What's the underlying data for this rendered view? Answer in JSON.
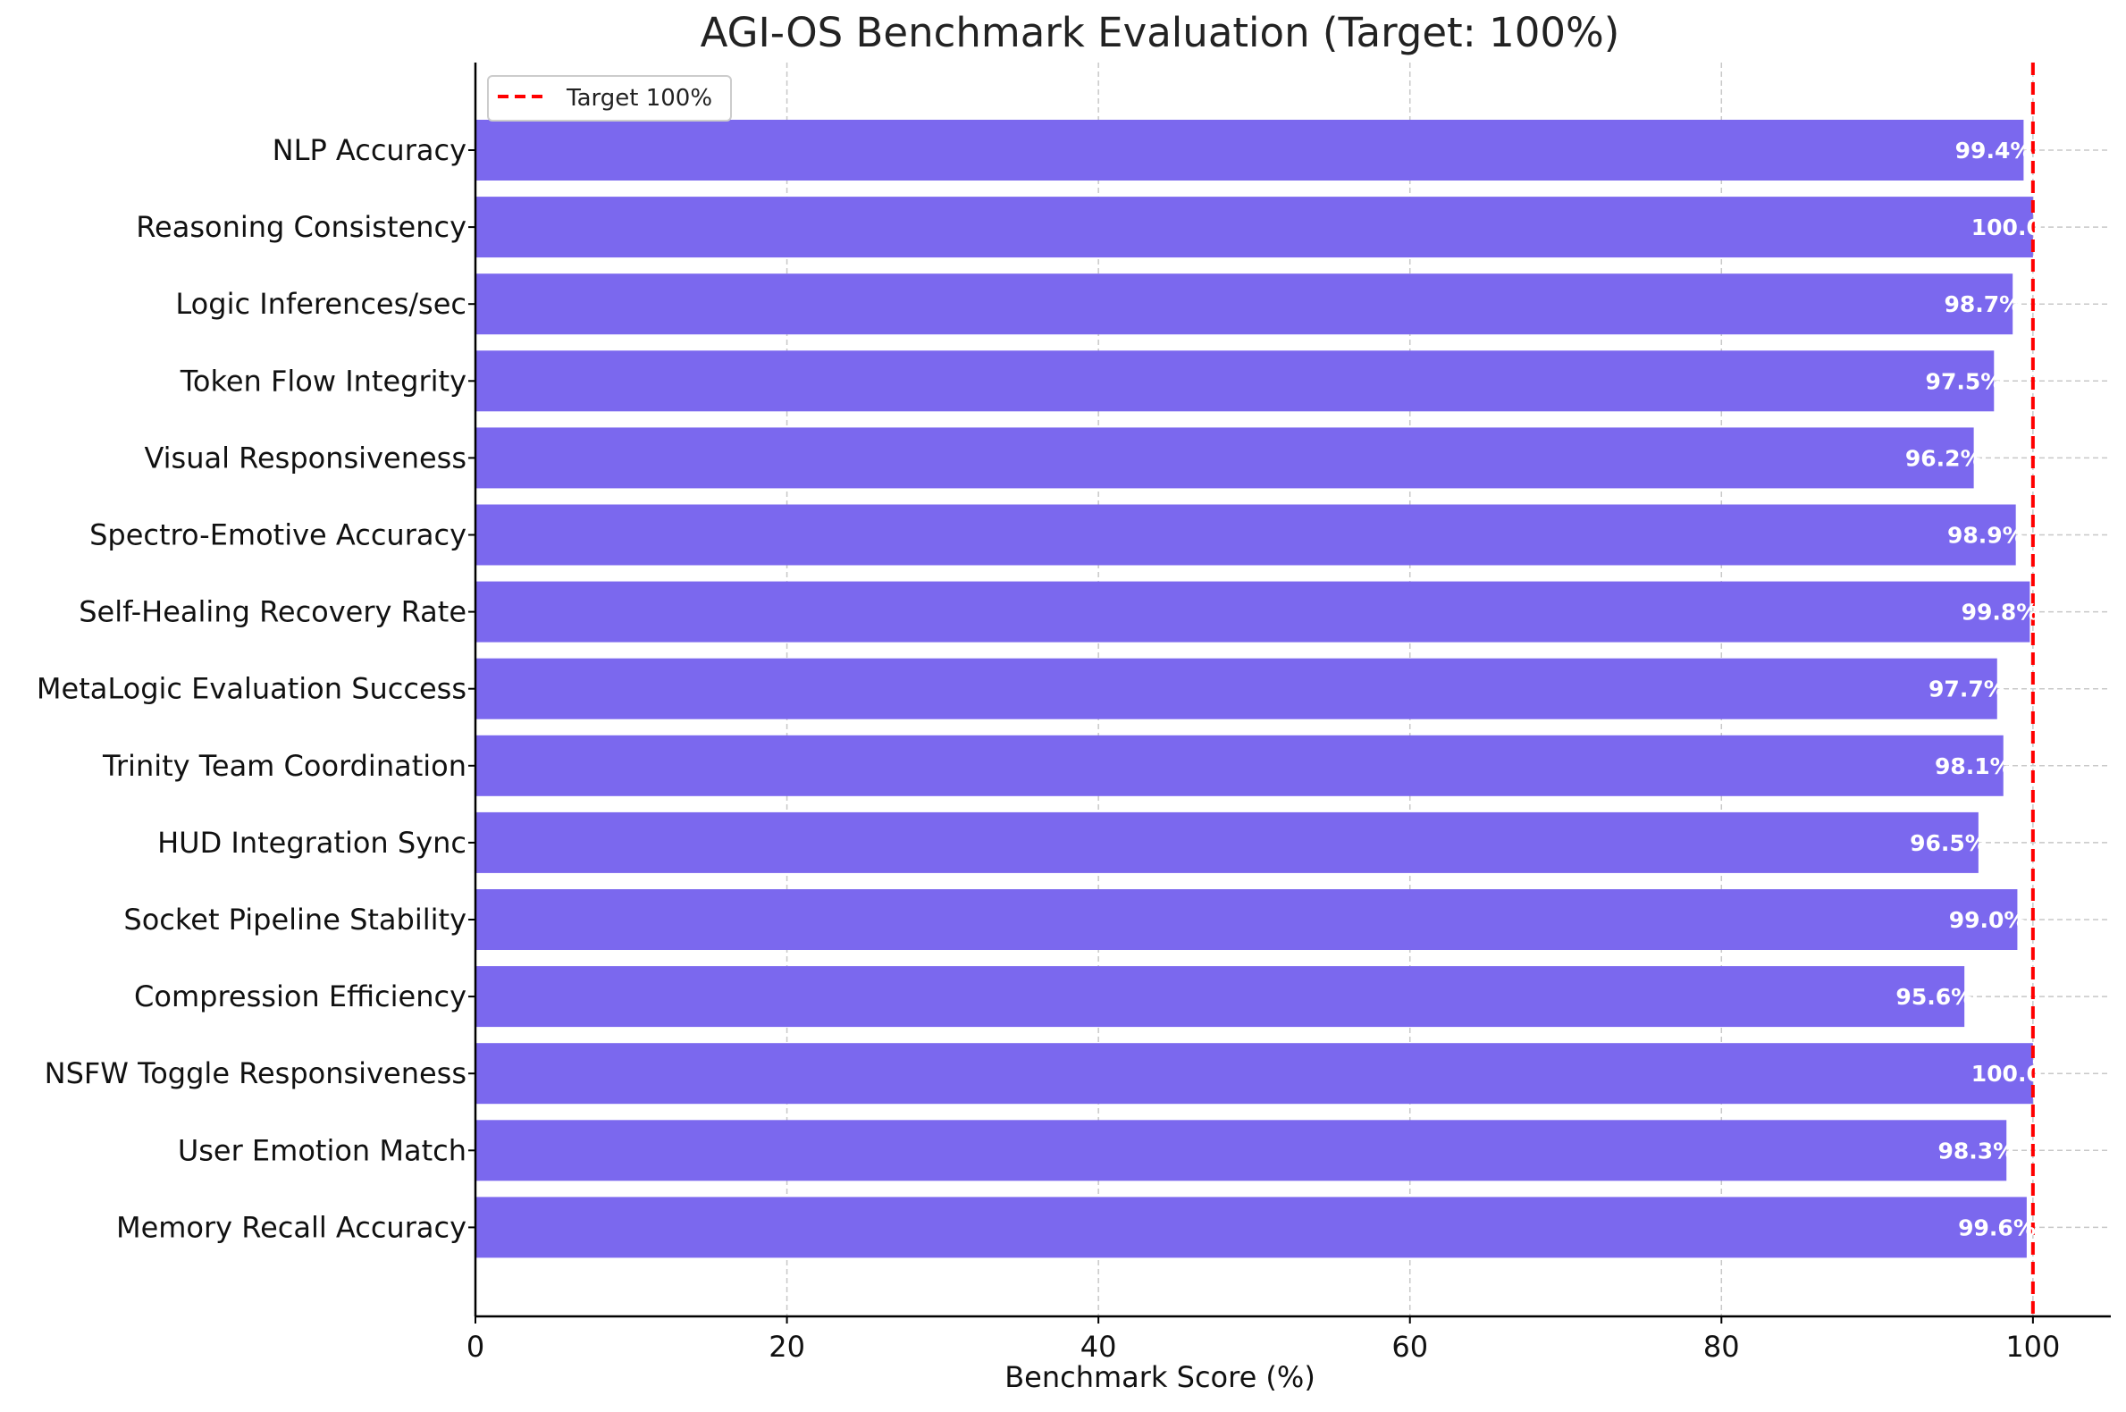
{
  "chart_data": {
    "type": "bar",
    "orientation": "horizontal",
    "title": "AGI-OS Benchmark Evaluation (Target: 100%)",
    "xlabel": "Benchmark Score (%)",
    "ylabel": "",
    "xlim": [
      0,
      105
    ],
    "xticks": [
      "0",
      "20",
      "40",
      "60",
      "80",
      "100"
    ],
    "categories": [
      "NLP Accuracy",
      "Reasoning Consistency",
      "Logic Inferences/sec",
      "Token Flow Integrity",
      "Visual Responsiveness",
      "Spectro-Emotive Accuracy",
      "Self-Healing Recovery Rate",
      "MetaLogic Evaluation Success",
      "Trinity Team Coordination",
      "HUD Integration Sync",
      "Socket Pipeline Stability",
      "Compression Efficiency",
      "NSFW Toggle Responsiveness",
      "User Emotion Match",
      "Memory Recall Accuracy"
    ],
    "values": [
      99.4,
      100.0,
      98.7,
      97.5,
      96.2,
      98.9,
      99.8,
      97.7,
      98.1,
      96.5,
      99.0,
      95.6,
      100.0,
      98.3,
      99.6
    ],
    "data_labels": [
      "99.4%",
      "100.0",
      "98.7%",
      "97.5%",
      "96.2%",
      "98.9%",
      "99.8%",
      "97.7%",
      "98.1%",
      "96.5%",
      "99.0%",
      "95.6%",
      "100.0",
      "98.3%",
      "99.6%"
    ],
    "bar_color": "#7B68EE",
    "target": {
      "value": 100,
      "label": "Target 100%",
      "color": "#ff0000",
      "style": "dashed"
    },
    "grid": true,
    "legend_position": "top-left"
  }
}
